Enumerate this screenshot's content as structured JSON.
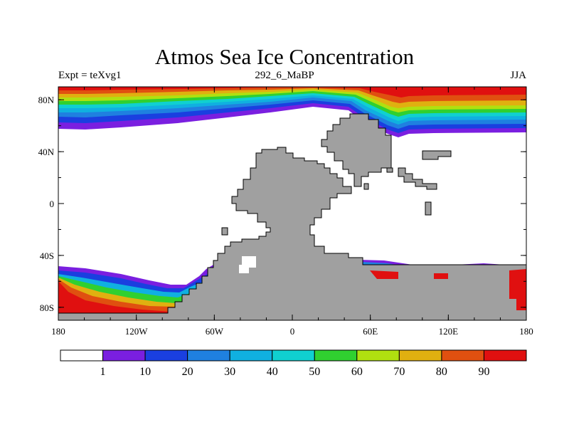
{
  "title": "Atmos Sea Ice Concentration",
  "left_string": "Expt = teXvg1",
  "center_string": "292_6_MaBP",
  "right_string": "JJA",
  "x_ticks": [
    "180",
    "120W",
    "60W",
    "0",
    "60E",
    "120E",
    "180"
  ],
  "y_ticks": [
    "80N",
    "40N",
    "0",
    "40S",
    "80S"
  ],
  "colorbar": {
    "labels": [
      "1",
      "10",
      "20",
      "30",
      "40",
      "50",
      "60",
      "70",
      "80",
      "90"
    ],
    "colors": [
      "#ffffff",
      "#7a1fe0",
      "#1a3fe0",
      "#1f80e0",
      "#10b0e0",
      "#10d0d0",
      "#30d030",
      "#b0e010",
      "#e0b010",
      "#e05010",
      "#e01010"
    ]
  },
  "land_color": "#a0a0a0"
}
